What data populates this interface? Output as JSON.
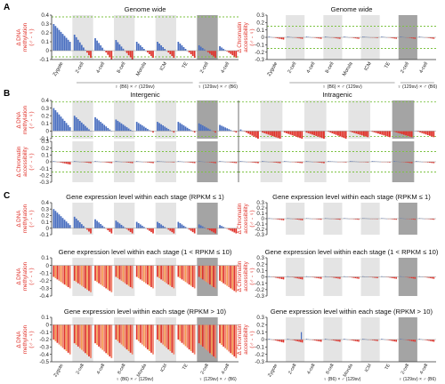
{
  "figure": {
    "panel_letters": [
      "A",
      "B",
      "C"
    ],
    "colors": {
      "positive": "#4a6fc0",
      "negative": "#e0342c",
      "negative_light": "#f07f68",
      "highlight_bg": "#e4e4e4",
      "dark_bg": "#a4a4a4",
      "threshold": "#7cc242",
      "axis": "#333333",
      "label_red": "#e0342c"
    },
    "stages": [
      "Zygote",
      "2-cell",
      "4-cell",
      "8-cell",
      "Morula",
      "ICM",
      "TE",
      "2-cell",
      "4-cell"
    ],
    "cross_left": "♀ (B6) × ♂ (129sv)",
    "cross_right": "♀ (129sv) × ♂ (B6)",
    "ylabel_dna": [
      "Δ DNA",
      "methylation",
      "(♂ - ♀)"
    ],
    "ylabel_chrom": [
      "Δ Chromatin",
      "accessibility",
      "(♂ - ♀)"
    ]
  },
  "chart_data": [
    {
      "id": "A-left",
      "type": "bar",
      "title": "Genome wide",
      "measure": "dna",
      "ylim": [
        -0.1,
        0.4
      ],
      "ticks": [
        -0.1,
        0,
        0.1,
        0.2,
        0.3,
        0.4
      ],
      "threshold_lines": [
        0.38,
        -0.07
      ],
      "groups": [
        {
          "stage": "Zygote",
          "start": 0.3,
          "end": 0.1
        },
        {
          "stage": "2-cell",
          "start": 0.18,
          "end": -0.08
        },
        {
          "stage": "4-cell",
          "start": 0.14,
          "end": -0.1
        },
        {
          "stage": "8-cell",
          "start": 0.12,
          "end": -0.1
        },
        {
          "stage": "Morula",
          "start": 0.1,
          "end": -0.08
        },
        {
          "stage": "ICM",
          "start": 0.1,
          "end": -0.08
        },
        {
          "stage": "TE",
          "start": 0.1,
          "end": -0.08
        },
        {
          "stage": "2-cell",
          "start": 0.06,
          "end": -0.08
        },
        {
          "stage": "4-cell",
          "start": 0.05,
          "end": -0.08
        }
      ]
    },
    {
      "id": "A-right",
      "type": "bar",
      "title": "Genome wide",
      "measure": "chromatin",
      "ylim": [
        -0.3,
        0.3
      ],
      "ticks": [
        -0.3,
        -0.2,
        -0.1,
        0,
        0.1,
        0.2,
        0.3
      ],
      "threshold_lines": [
        0.15,
        -0.15
      ],
      "groups": [
        {
          "stage": "Zygote",
          "start": 0.01,
          "end": -0.03
        },
        {
          "stage": "2-cell",
          "start": 0.01,
          "end": -0.02
        },
        {
          "stage": "4-cell",
          "start": 0.01,
          "end": -0.02
        },
        {
          "stage": "8-cell",
          "start": 0.01,
          "end": -0.02
        },
        {
          "stage": "Morula",
          "start": 0.01,
          "end": -0.02
        },
        {
          "stage": "ICM",
          "start": 0.01,
          "end": -0.01
        },
        {
          "stage": "TE",
          "start": 0.01,
          "end": -0.02
        },
        {
          "stage": "2-cell",
          "start": 0.01,
          "end": -0.02
        },
        {
          "stage": "4-cell",
          "start": 0.01,
          "end": -0.02
        }
      ]
    },
    {
      "id": "B-left",
      "type": "bar",
      "title": "Intergenic",
      "measure": "dna",
      "ylim": [
        -0.1,
        0.4
      ],
      "ticks": [
        -0.1,
        0,
        0.1,
        0.2,
        0.3,
        0.4
      ],
      "threshold_lines": [
        0.38,
        -0.07
      ],
      "groups": [
        {
          "stage": "Zygote",
          "start": 0.3,
          "end": 0.05
        },
        {
          "stage": "2-cell",
          "start": 0.2,
          "end": 0.0
        },
        {
          "stage": "4-cell",
          "start": 0.18,
          "end": 0.0
        },
        {
          "stage": "8-cell",
          "start": 0.15,
          "end": 0.0
        },
        {
          "stage": "Morula",
          "start": 0.12,
          "end": -0.02
        },
        {
          "stage": "ICM",
          "start": 0.12,
          "end": -0.02
        },
        {
          "stage": "TE",
          "start": 0.12,
          "end": -0.02
        },
        {
          "stage": "2-cell",
          "start": 0.1,
          "end": -0.02
        },
        {
          "stage": "4-cell",
          "start": 0.08,
          "end": -0.02
        }
      ]
    },
    {
      "id": "B-right",
      "type": "bar",
      "title": "Intragenic",
      "measure": "dna",
      "ylim": [
        -0.1,
        0.4
      ],
      "ticks": [],
      "threshold_lines": [
        0.38,
        -0.07
      ],
      "groups": [
        {
          "stage": "Zygote",
          "start": 0.02,
          "end": -0.1
        },
        {
          "stage": "2-cell",
          "start": -0.02,
          "end": -0.1
        },
        {
          "stage": "4-cell",
          "start": -0.02,
          "end": -0.1
        },
        {
          "stage": "8-cell",
          "start": -0.02,
          "end": -0.1
        },
        {
          "stage": "Morula",
          "start": -0.01,
          "end": -0.1
        },
        {
          "stage": "ICM",
          "start": -0.01,
          "end": -0.08
        },
        {
          "stage": "TE",
          "start": -0.01,
          "end": -0.08
        },
        {
          "stage": "2-cell",
          "start": -0.01,
          "end": -0.08
        },
        {
          "stage": "4-cell",
          "start": 0.0,
          "end": -0.08
        }
      ]
    },
    {
      "id": "B-left-chrom",
      "type": "bar",
      "title": "",
      "measure": "chromatin",
      "ylim": [
        -0.3,
        0.3
      ],
      "ticks": [
        -0.3,
        -0.2,
        -0.1,
        0,
        0.1,
        0.2,
        0.3
      ],
      "threshold_lines": [
        0.15,
        -0.15
      ],
      "groups": [
        {
          "stage": "Zygote",
          "start": 0.01,
          "end": -0.04
        },
        {
          "stage": "2-cell",
          "start": 0.01,
          "end": -0.02
        },
        {
          "stage": "4-cell",
          "start": 0.01,
          "end": -0.02
        },
        {
          "stage": "8-cell",
          "start": 0.01,
          "end": -0.02
        },
        {
          "stage": "Morula",
          "start": 0.01,
          "end": -0.02
        },
        {
          "stage": "ICM",
          "start": 0.01,
          "end": -0.01
        },
        {
          "stage": "TE",
          "start": 0.01,
          "end": -0.02
        },
        {
          "stage": "2-cell",
          "start": 0.01,
          "end": -0.02
        },
        {
          "stage": "4-cell",
          "start": 0.01,
          "end": -0.02
        }
      ]
    },
    {
      "id": "B-right-chrom",
      "type": "bar",
      "title": "",
      "measure": "chromatin",
      "ylim": [
        -0.3,
        0.3
      ],
      "ticks": [],
      "threshold_lines": [
        0.15,
        -0.15
      ],
      "groups": [
        {
          "stage": "Zygote",
          "start": 0.01,
          "end": -0.02
        },
        {
          "stage": "2-cell",
          "start": 0.01,
          "end": -0.02
        },
        {
          "stage": "4-cell",
          "start": 0.01,
          "end": -0.02
        },
        {
          "stage": "8-cell",
          "start": 0.01,
          "end": -0.02
        },
        {
          "stage": "Morula",
          "start": 0.01,
          "end": -0.01
        },
        {
          "stage": "ICM",
          "start": 0.01,
          "end": -0.01
        },
        {
          "stage": "TE",
          "start": 0.01,
          "end": -0.01
        },
        {
          "stage": "2-cell",
          "start": 0.01,
          "end": -0.02
        },
        {
          "stage": "4-cell",
          "start": 0.01,
          "end": -0.02
        }
      ]
    },
    {
      "id": "C1-left",
      "type": "bar",
      "title": "Gene expression level within each stage (RPKM ≤ 1)",
      "measure": "dna",
      "ylim": [
        -0.1,
        0.4
      ],
      "ticks": [
        -0.1,
        0,
        0.1,
        0.2,
        0.3,
        0.4
      ],
      "threshold_lines": [],
      "groups": [
        {
          "stage": "Zygote",
          "start": 0.3,
          "end": 0.05
        },
        {
          "stage": "2-cell",
          "start": 0.18,
          "end": -0.08
        },
        {
          "stage": "4-cell",
          "start": 0.14,
          "end": -0.08
        },
        {
          "stage": "8-cell",
          "start": 0.12,
          "end": -0.08
        },
        {
          "stage": "Morula",
          "start": 0.1,
          "end": -0.08
        },
        {
          "stage": "ICM",
          "start": 0.1,
          "end": -0.08
        },
        {
          "stage": "TE",
          "start": 0.1,
          "end": -0.08
        },
        {
          "stage": "2-cell",
          "start": 0.06,
          "end": -0.08
        },
        {
          "stage": "4-cell",
          "start": 0.05,
          "end": -0.08
        }
      ]
    },
    {
      "id": "C1-right",
      "type": "bar",
      "title": "Gene expression level within each stage (RPKM ≤ 1)",
      "measure": "chromatin",
      "ylim": [
        -0.3,
        0.3
      ],
      "ticks": [
        -0.3,
        -0.2,
        -0.1,
        0,
        0.1,
        0.2,
        0.3
      ],
      "threshold_lines": [],
      "groups": [
        {
          "stage": "Zygote",
          "start": 0.01,
          "end": -0.03
        },
        {
          "stage": "2-cell",
          "start": 0.01,
          "end": -0.03
        },
        {
          "stage": "4-cell",
          "start": 0.01,
          "end": -0.02
        },
        {
          "stage": "8-cell",
          "start": 0.01,
          "end": -0.02
        },
        {
          "stage": "Morula",
          "start": 0.01,
          "end": -0.02
        },
        {
          "stage": "ICM",
          "start": 0.01,
          "end": -0.01
        },
        {
          "stage": "TE",
          "start": 0.01,
          "end": -0.02
        },
        {
          "stage": "2-cell",
          "start": 0.01,
          "end": -0.02
        },
        {
          "stage": "4-cell",
          "start": 0.01,
          "end": -0.02
        }
      ]
    },
    {
      "id": "C2-left",
      "type": "bar",
      "title": "Gene expression level within each stage (1 < RPKM ≤ 10)",
      "measure": "dna",
      "ylim": [
        -0.4,
        0.1
      ],
      "ticks": [
        -0.4,
        -0.3,
        -0.2,
        -0.1,
        0,
        0.1
      ],
      "threshold_lines": [],
      "groups": [
        {
          "stage": "Zygote",
          "start": -0.15,
          "end": -0.3
        },
        {
          "stage": "2-cell",
          "start": -0.2,
          "end": -0.35
        },
        {
          "stage": "4-cell",
          "start": -0.2,
          "end": -0.35
        },
        {
          "stage": "8-cell",
          "start": -0.15,
          "end": -0.3
        },
        {
          "stage": "Morula",
          "start": -0.15,
          "end": -0.3
        },
        {
          "stage": "ICM",
          "start": -0.15,
          "end": -0.3
        },
        {
          "stage": "TE",
          "start": -0.15,
          "end": -0.3
        },
        {
          "stage": "2-cell",
          "start": -0.15,
          "end": -0.3
        },
        {
          "stage": "4-cell",
          "start": -0.2,
          "end": -0.35
        }
      ]
    },
    {
      "id": "C2-right",
      "type": "bar",
      "title": "Gene expression level within each stage (1 < RPKM ≤ 10)",
      "measure": "chromatin",
      "ylim": [
        -0.3,
        0.3
      ],
      "ticks": [
        -0.3,
        -0.2,
        -0.1,
        0,
        0.1,
        0.2,
        0.3
      ],
      "threshold_lines": [],
      "groups": [
        {
          "stage": "Zygote",
          "start": 0.01,
          "end": -0.04
        },
        {
          "stage": "2-cell",
          "start": 0.01,
          "end": -0.04
        },
        {
          "stage": "4-cell",
          "start": 0.01,
          "end": -0.03
        },
        {
          "stage": "8-cell",
          "start": 0.01,
          "end": -0.03
        },
        {
          "stage": "Morula",
          "start": 0.01,
          "end": -0.03
        },
        {
          "stage": "ICM",
          "start": 0.01,
          "end": -0.02
        },
        {
          "stage": "TE",
          "start": 0.01,
          "end": -0.03
        },
        {
          "stage": "2-cell",
          "start": 0.01,
          "end": -0.03
        },
        {
          "stage": "4-cell",
          "start": 0.01,
          "end": -0.03
        }
      ]
    },
    {
      "id": "C3-left",
      "type": "bar",
      "title": "Gene expression level within each stage (RPKM > 10)",
      "measure": "dna",
      "ylim": [
        -0.5,
        0.1
      ],
      "ticks": [
        -0.5,
        -0.4,
        -0.3,
        -0.2,
        -0.1,
        0,
        0.1
      ],
      "threshold_lines": [],
      "groups": [
        {
          "stage": "Zygote",
          "start": -0.2,
          "end": -0.4
        },
        {
          "stage": "2-cell",
          "start": -0.25,
          "end": -0.45
        },
        {
          "stage": "4-cell",
          "start": -0.25,
          "end": -0.45
        },
        {
          "stage": "8-cell",
          "start": -0.2,
          "end": -0.4
        },
        {
          "stage": "Morula",
          "start": -0.2,
          "end": -0.4
        },
        {
          "stage": "ICM",
          "start": -0.2,
          "end": -0.4
        },
        {
          "stage": "TE",
          "start": -0.2,
          "end": -0.4
        },
        {
          "stage": "2-cell",
          "start": -0.25,
          "end": -0.45
        },
        {
          "stage": "4-cell",
          "start": -0.25,
          "end": -0.45
        }
      ]
    },
    {
      "id": "C3-right",
      "type": "bar",
      "title": "Gene expression level within each stage (RPKM > 10)",
      "measure": "chromatin",
      "ylim": [
        -0.3,
        0.3
      ],
      "ticks": [
        -0.3,
        -0.2,
        -0.1,
        0,
        0.1,
        0.2,
        0.3
      ],
      "threshold_lines": [],
      "spike": {
        "stage": "2-cell",
        "value": 0.1
      },
      "groups": [
        {
          "stage": "Zygote",
          "start": 0.01,
          "end": -0.04
        },
        {
          "stage": "2-cell",
          "start": 0.01,
          "end": -0.04
        },
        {
          "stage": "4-cell",
          "start": 0.01,
          "end": -0.03
        },
        {
          "stage": "8-cell",
          "start": 0.01,
          "end": -0.03
        },
        {
          "stage": "Morula",
          "start": 0.01,
          "end": -0.03
        },
        {
          "stage": "ICM",
          "start": 0.01,
          "end": -0.02
        },
        {
          "stage": "TE",
          "start": 0.01,
          "end": -0.03
        },
        {
          "stage": "2-cell",
          "start": 0.01,
          "end": -0.03
        },
        {
          "stage": "4-cell",
          "start": 0.01,
          "end": -0.03
        }
      ]
    }
  ]
}
